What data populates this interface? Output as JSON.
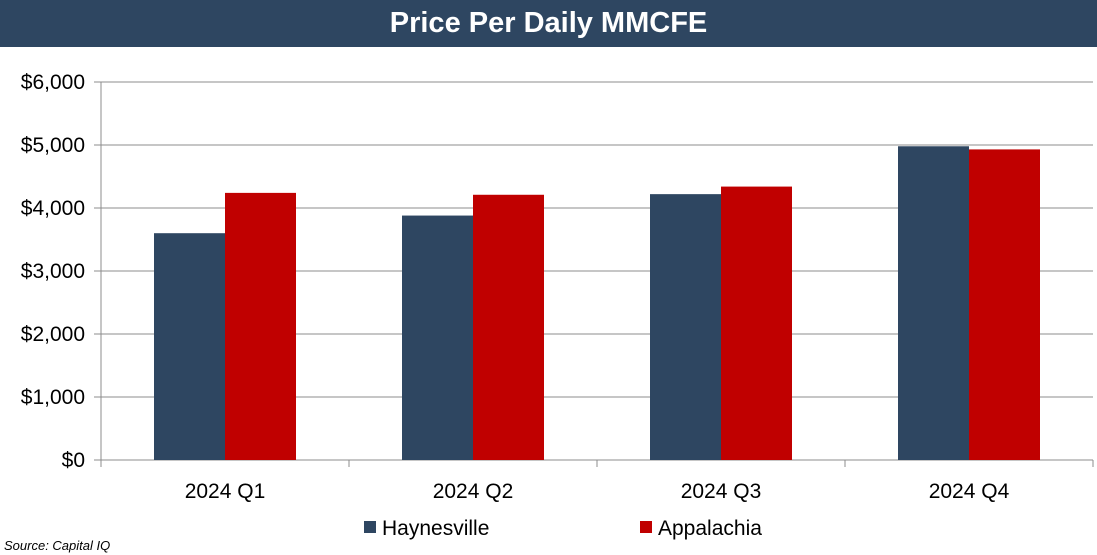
{
  "chart_data": {
    "type": "bar",
    "title": "Price Per Daily MMCFE",
    "categories": [
      "2024 Q1",
      "2024 Q2",
      "2024 Q3",
      "2024 Q4"
    ],
    "series": [
      {
        "name": "Haynesville",
        "values": [
          3600,
          3880,
          4220,
          4980
        ],
        "color": "#2e4661"
      },
      {
        "name": "Appalachia",
        "values": [
          4240,
          4210,
          4340,
          4930
        ],
        "color": "#c00000"
      }
    ],
    "xlabel": "",
    "ylabel": "",
    "ylim": [
      0,
      6000
    ],
    "yticks": [
      0,
      1000,
      2000,
      3000,
      4000,
      5000,
      6000
    ],
    "ytick_labels": [
      "$0",
      "$1,000",
      "$2,000",
      "$3,000",
      "$4,000",
      "$5,000",
      "$6,000"
    ],
    "grid": true,
    "legend_position": "bottom"
  },
  "source": "Source:  Capital IQ"
}
